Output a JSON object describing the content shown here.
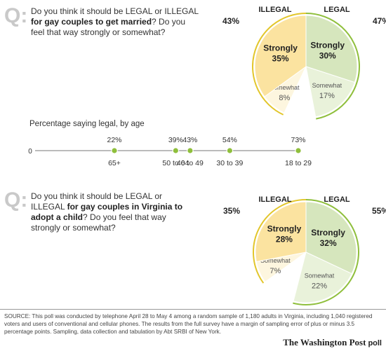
{
  "questions": [
    {
      "qmark": "Q:",
      "pre": "Do you think it should be LEGAL or ILLEGAL ",
      "bold": "for gay couples to get married",
      "post": "? Do you feel that way strongly or somewhat?"
    },
    {
      "qmark": "Q:",
      "pre": "Do you think it should be LEGAL or ILLEGAL ",
      "bold": "for gay couples in Virginia to adopt a child",
      "post": "? Do you feel that way strongly or somewhat?"
    }
  ],
  "colors": {
    "illegal_strong": "#fbe3a0",
    "illegal_somewhat": "#fdf6df",
    "illegal_line": "#e2c62b",
    "legal_strong": "#d6e6bd",
    "legal_somewhat": "#e9f2da",
    "legal_line": "#8fbf3c",
    "dot": "#8fbf3c"
  },
  "chart_data": [
    {
      "type": "pie",
      "title": "",
      "totals": [
        {
          "label": "ILLEGAL",
          "value": 43
        },
        {
          "label": "LEGAL",
          "value": 47
        }
      ],
      "slices": [
        {
          "group": "LEGAL",
          "label": "Strongly",
          "value": 30
        },
        {
          "group": "LEGAL",
          "label": "Somewhat",
          "value": 17
        },
        {
          "group": "ILLEGAL",
          "label": "Somewhat",
          "value": 8
        },
        {
          "group": "ILLEGAL",
          "label": "Strongly",
          "value": 35
        }
      ]
    },
    {
      "type": "scatter",
      "title": "Percentage saying legal, by age",
      "zero_label": "0",
      "categories": [
        "65+",
        "50 to 64",
        "40 to 49",
        "30 to 39",
        "18 to 29"
      ],
      "values": [
        22,
        39,
        43,
        54,
        73
      ],
      "xlim": [
        0,
        73
      ],
      "ylabel": ""
    },
    {
      "type": "pie",
      "title": "",
      "totals": [
        {
          "label": "ILLEGAL",
          "value": 35
        },
        {
          "label": "LEGAL",
          "value": 55
        }
      ],
      "slices": [
        {
          "group": "LEGAL",
          "label": "Strongly",
          "value": 32
        },
        {
          "group": "LEGAL",
          "label": "Somewhat",
          "value": 22
        },
        {
          "group": "ILLEGAL",
          "label": "Somewhat",
          "value": 7
        },
        {
          "group": "ILLEGAL",
          "label": "Strongly",
          "value": 28
        }
      ]
    }
  ],
  "source": "SOURCE: This poll was conducted by telephone April 28 to May 4 among a random sample of 1,180 adults in Virginia, including 1,040 registered voters and users of conventional and cellular phones. The results from the full survey have a margin of sampling error of plus or minus 3.5 percentage points. Sampling, data collection and tabulation by Abt SRBI of New York.",
  "brand": {
    "name": "The Washington Post",
    "suffix": "poll"
  }
}
